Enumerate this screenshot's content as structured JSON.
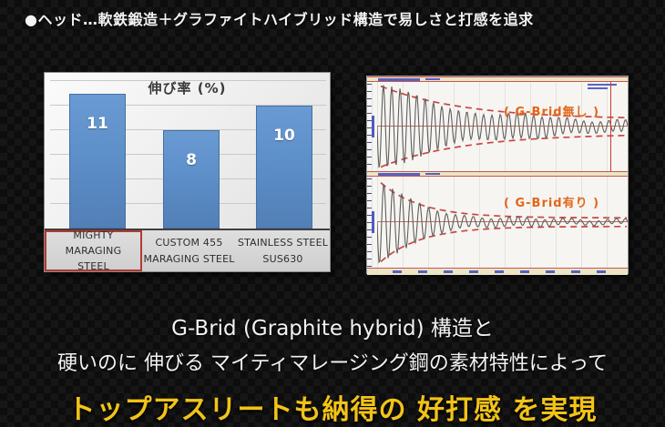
{
  "header": {
    "bullet_text": "●ヘッド…軟鉄鍛造＋グラファイトハイブリッド構造で易しさと打感を追求"
  },
  "footer": {
    "line1": "G-Brid (Graphite hybrid) 構造と",
    "line2": "硬いのに 伸びる マイティマレージング鋼の素材特性によって",
    "headline": "トップアスリートも納得の 好打感 を実現"
  },
  "colors": {
    "headline_yellow": "#f2c318",
    "bar_blue": "#5d8fc9",
    "highlight_red": "#b33a33",
    "envelope_red": "#cc4743",
    "annotation_orange": "#e2661a",
    "waveform_gray": "#5e5e5e"
  },
  "chart_data": [
    {
      "type": "bar",
      "title": "伸び率 (%)",
      "categories": [
        "MIGHTY MARAGING STEEL",
        "CUSTOM 455 MARAGING STEEL",
        "STAINLESS STEEL SUS630"
      ],
      "category_lines": [
        [
          "MIGHTY MARAGING",
          "STEEL"
        ],
        [
          "CUSTOM 455",
          "MARAGING STEEL"
        ],
        [
          "STAINLESS STEEL",
          "SUS630"
        ]
      ],
      "values": [
        11,
        8,
        10
      ],
      "highlight_index": 0,
      "ylim": [
        0,
        12.7
      ],
      "gridline_step": 2,
      "legend": "none",
      "grid": "horizontal"
    },
    {
      "type": "line",
      "subtype": "damped_oscillation",
      "annotation": "( G-Brid無し )",
      "decay": 3.0,
      "cycles": 30,
      "residual_amplitude": 0.1,
      "envelope": {
        "decay": 3.0,
        "residual": 0.17
      },
      "cursor_line_x_frac": 0.93
    },
    {
      "type": "line",
      "subtype": "damped_oscillation",
      "annotation": "( G-Brid有り )",
      "decay": 6.2,
      "cycles": 28,
      "residual_amplitude": 0.06,
      "envelope": {
        "decay": 6.2,
        "residual": 0.1
      }
    }
  ]
}
